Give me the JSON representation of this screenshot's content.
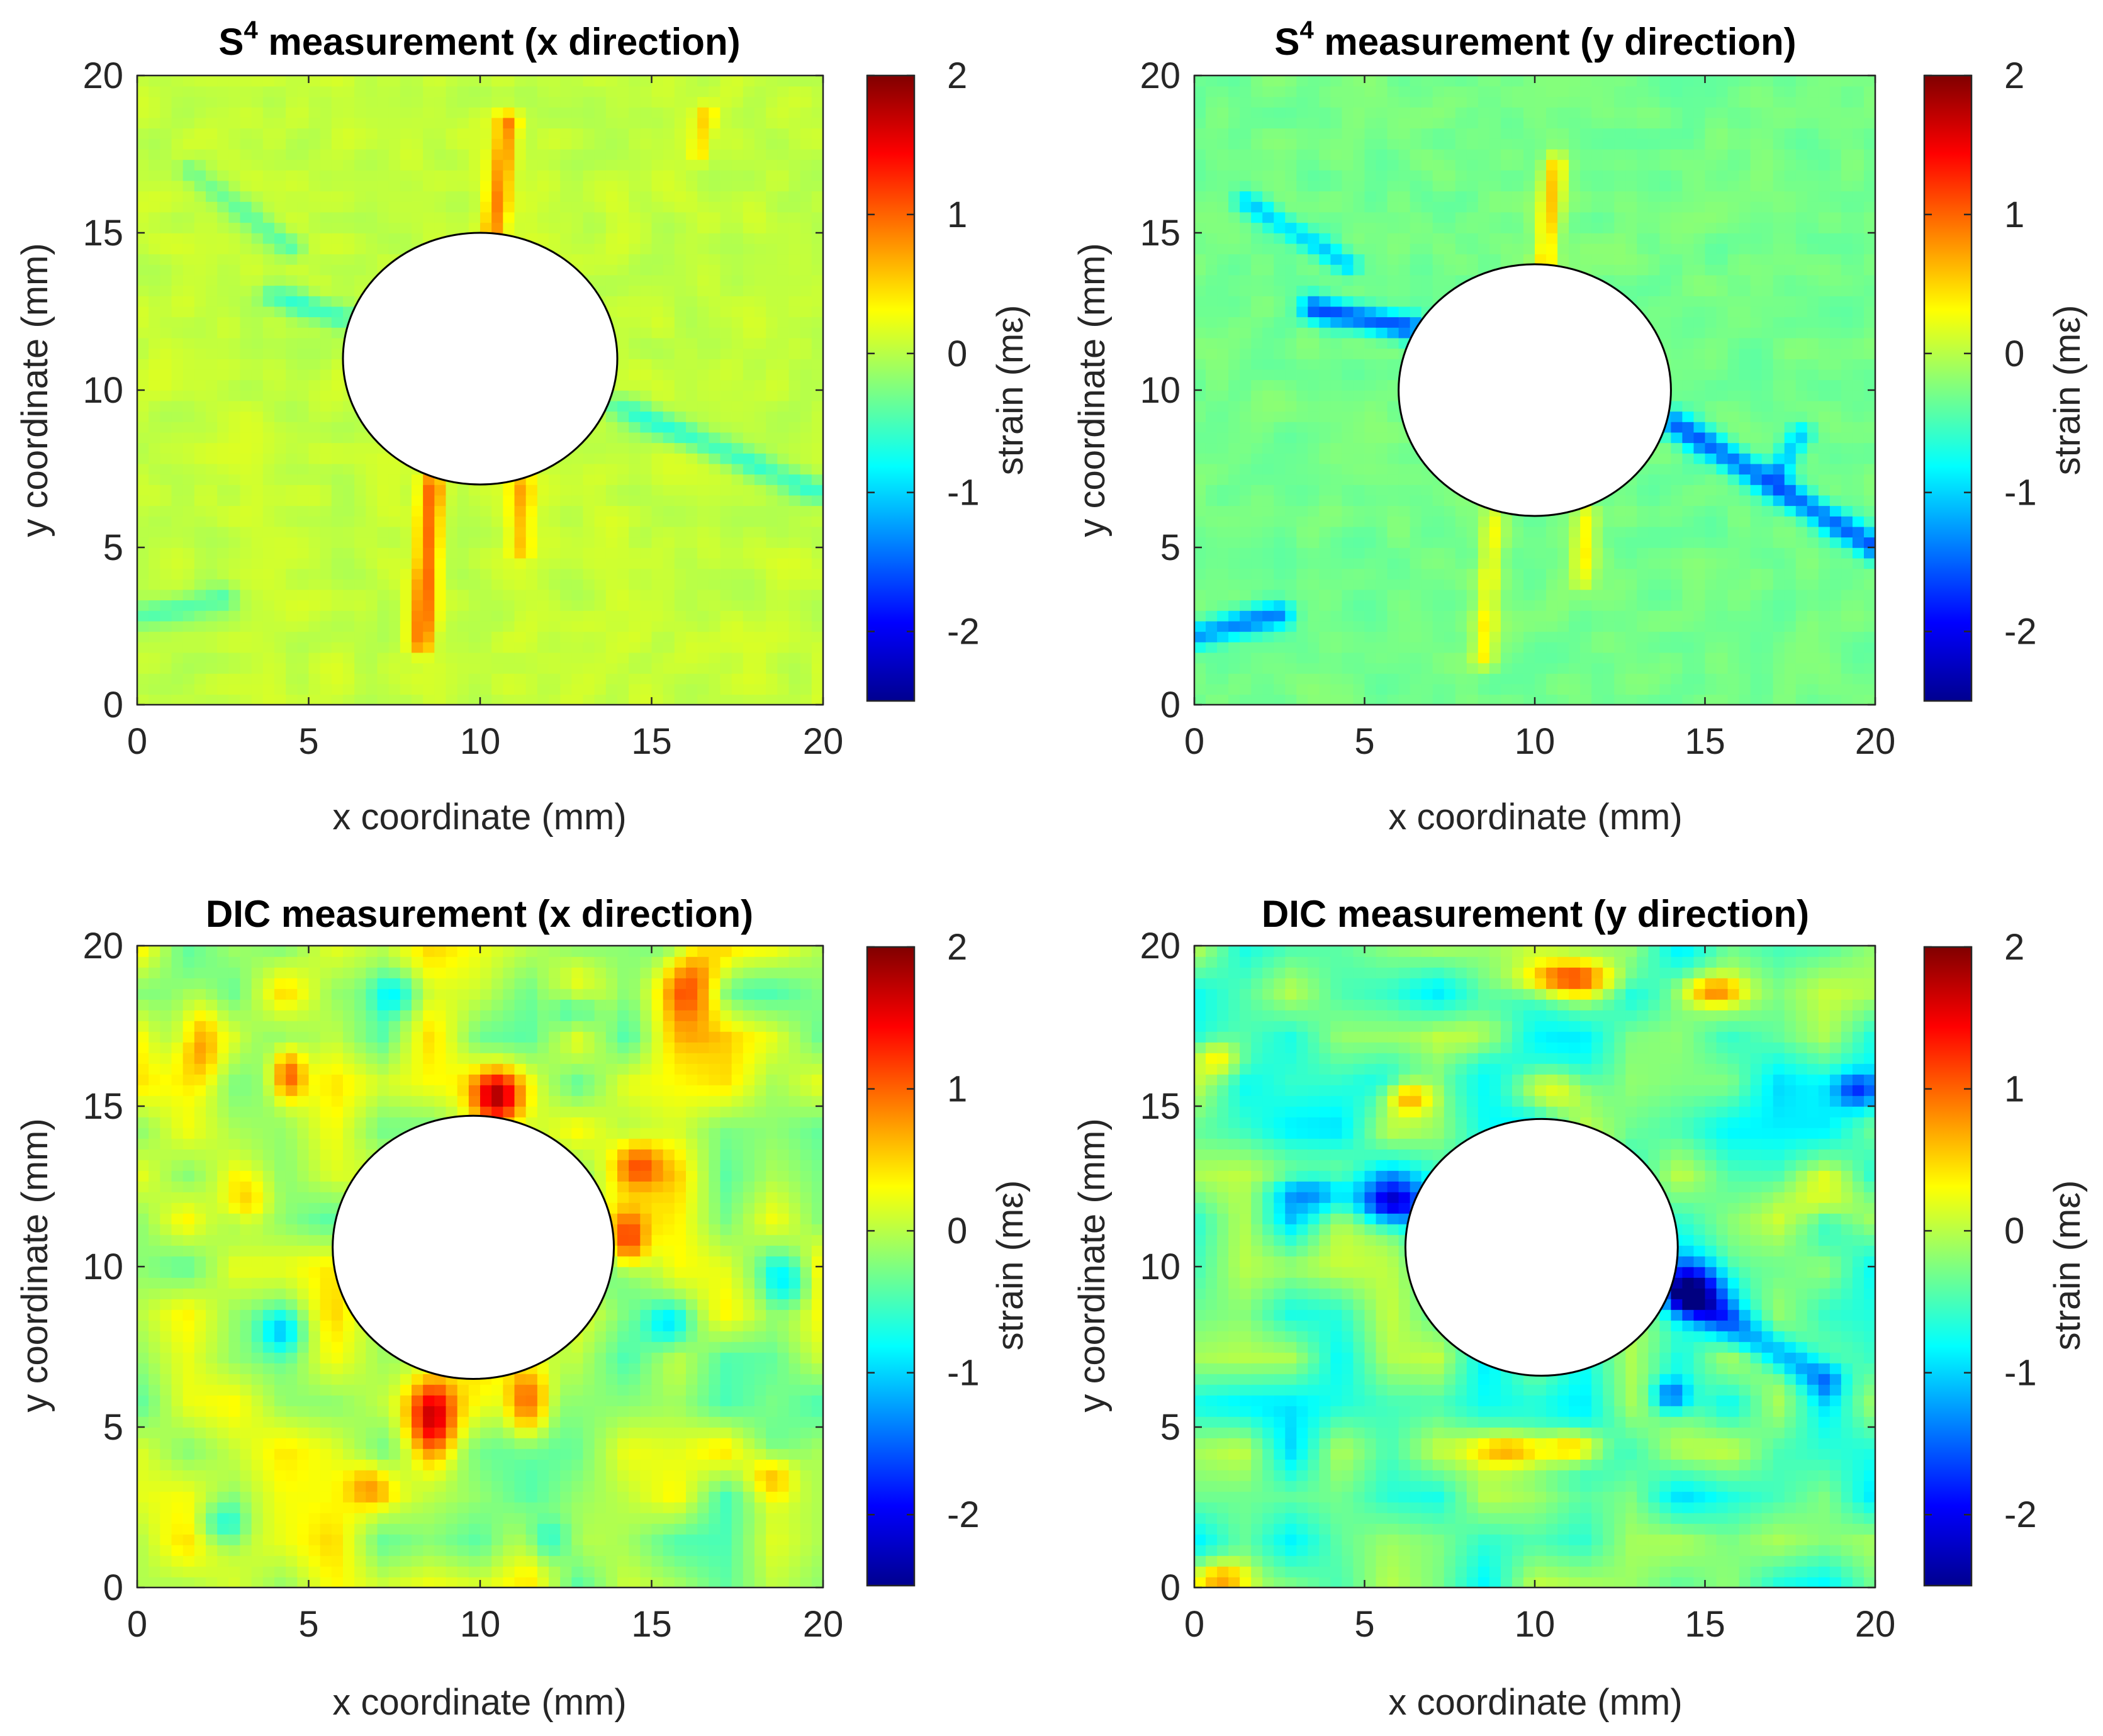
{
  "figure": {
    "description_free": true,
    "colormap": "jet",
    "hole_fill": "#ffffff",
    "hole_stroke": "#000000"
  },
  "chart_data": [
    {
      "type": "heatmap",
      "title_main": "S",
      "title_sup": "4",
      "title_rest": " measurement (x direction)",
      "xlabel": "x coordinate (mm)",
      "ylabel": "y coordinate (mm)",
      "xlim": [
        0,
        20
      ],
      "ylim": [
        0,
        20
      ],
      "xticks": [
        "0",
        "5",
        "10",
        "15",
        "20"
      ],
      "yticks": [
        "0",
        "5",
        "10",
        "15",
        "20"
      ],
      "colorbar_label": "strain (mε)",
      "clim": [
        -2.5,
        2
      ],
      "colorbar_ticks": [
        "-2",
        "-1",
        "0",
        "1",
        "2"
      ],
      "base_strain": 0.05,
      "hole": {
        "cx": 10,
        "cy": 11,
        "r": 4
      },
      "features": [
        {
          "kind": "streak",
          "x1": 8.3,
          "y1": 2.0,
          "x2": 8.6,
          "y2": 7.0,
          "w": 0.25,
          "v": 0.9
        },
        {
          "kind": "streak",
          "x1": 11.2,
          "y1": 5.0,
          "x2": 11.2,
          "y2": 7.0,
          "w": 0.25,
          "v": 0.6
        },
        {
          "kind": "streak",
          "x1": 10.4,
          "y1": 15.0,
          "x2": 10.8,
          "y2": 18.5,
          "w": 0.25,
          "v": 0.8
        },
        {
          "kind": "streak",
          "x1": 16.4,
          "y1": 17.5,
          "x2": 16.6,
          "y2": 18.8,
          "w": 0.2,
          "v": 0.4
        },
        {
          "kind": "streak",
          "x1": 4.0,
          "y1": 13.0,
          "x2": 6.0,
          "y2": 12.3,
          "w": 0.3,
          "v": -0.6
        },
        {
          "kind": "streak",
          "x1": 14.0,
          "y1": 9.5,
          "x2": 19.8,
          "y2": 6.8,
          "w": 0.3,
          "v": -0.6
        },
        {
          "kind": "streak",
          "x1": 0.0,
          "y1": 2.8,
          "x2": 2.5,
          "y2": 3.4,
          "w": 0.3,
          "v": -0.5
        },
        {
          "kind": "streak",
          "x1": 1.5,
          "y1": 17.0,
          "x2": 4.5,
          "y2": 14.5,
          "w": 0.25,
          "v": -0.4
        }
      ]
    },
    {
      "type": "heatmap",
      "title_main": "S",
      "title_sup": "4",
      "title_rest": " measurement (y direction)",
      "xlabel": "x coordinate (mm)",
      "ylabel": "y coordinate (mm)",
      "xlim": [
        0,
        20
      ],
      "ylim": [
        0,
        20
      ],
      "xticks": [
        "0",
        "5",
        "10",
        "15",
        "20"
      ],
      "yticks": [
        "0",
        "5",
        "10",
        "15",
        "20"
      ],
      "colorbar_label": "strain (mε)",
      "clim": [
        -2.5,
        2
      ],
      "colorbar_ticks": [
        "-2",
        "-1",
        "0",
        "1",
        "2"
      ],
      "base_strain": -0.3,
      "hole": {
        "cx": 10,
        "cy": 10,
        "r": 4
      },
      "features": [
        {
          "kind": "streak",
          "x1": 8.5,
          "y1": 1.5,
          "x2": 8.8,
          "y2": 6.0,
          "w": 0.25,
          "v": 0.6
        },
        {
          "kind": "streak",
          "x1": 11.4,
          "y1": 4.0,
          "x2": 11.5,
          "y2": 6.0,
          "w": 0.25,
          "v": 0.6
        },
        {
          "kind": "streak",
          "x1": 10.3,
          "y1": 14.0,
          "x2": 10.6,
          "y2": 17.2,
          "w": 0.25,
          "v": 0.8
        },
        {
          "kind": "streak",
          "x1": 3.5,
          "y1": 12.6,
          "x2": 6.3,
          "y2": 12.0,
          "w": 0.3,
          "v": -1.3
        },
        {
          "kind": "streak",
          "x1": 14.0,
          "y1": 9.0,
          "x2": 20.0,
          "y2": 5.0,
          "w": 0.3,
          "v": -1.2
        },
        {
          "kind": "streak",
          "x1": 0.0,
          "y1": 2.2,
          "x2": 2.5,
          "y2": 2.9,
          "w": 0.3,
          "v": -1.0
        },
        {
          "kind": "streak",
          "x1": 1.5,
          "y1": 16.0,
          "x2": 4.5,
          "y2": 14.0,
          "w": 0.25,
          "v": -0.7
        },
        {
          "kind": "streak",
          "x1": 17.2,
          "y1": 7.5,
          "x2": 17.8,
          "y2": 8.6,
          "w": 0.25,
          "v": -0.7
        }
      ]
    },
    {
      "type": "heatmap",
      "title_main": "DIC measurement (x direction)",
      "title_sup": "",
      "title_rest": "",
      "xlabel": "x coordinate (mm)",
      "ylabel": "y coordinate (mm)",
      "xlim": [
        0,
        20
      ],
      "ylim": [
        0,
        20
      ],
      "xticks": [
        "0",
        "5",
        "10",
        "15",
        "20"
      ],
      "yticks": [
        "0",
        "5",
        "10",
        "15",
        "20"
      ],
      "colorbar_label": "strain (mε)",
      "clim": [
        -2.5,
        2
      ],
      "colorbar_ticks": [
        "-2",
        "-1",
        "0",
        "1",
        "2"
      ],
      "base_strain": 0.0,
      "hole": {
        "cx": 9.8,
        "cy": 10.6,
        "r": 4.1
      },
      "features": [
        {
          "kind": "blob",
          "x": 8.6,
          "y": 5.3,
          "sx": 0.5,
          "sy": 0.9,
          "v": 1.5
        },
        {
          "kind": "blob",
          "x": 11.4,
          "y": 5.8,
          "sx": 0.45,
          "sy": 0.8,
          "v": 1.3
        },
        {
          "kind": "blob",
          "x": 10.5,
          "y": 15.3,
          "sx": 0.5,
          "sy": 0.6,
          "v": 1.6
        },
        {
          "kind": "blob",
          "x": 14.3,
          "y": 10.8,
          "sx": 0.4,
          "sy": 0.6,
          "v": 1.1
        },
        {
          "kind": "blob",
          "x": 14.6,
          "y": 13.2,
          "sx": 0.5,
          "sy": 0.5,
          "v": 0.8
        },
        {
          "kind": "blob",
          "x": 1.8,
          "y": 17.0,
          "sx": 0.5,
          "sy": 0.9,
          "v": 1.0
        },
        {
          "kind": "blob",
          "x": 4.4,
          "y": 16.0,
          "sx": 0.35,
          "sy": 0.6,
          "v": 1.1
        },
        {
          "kind": "blob",
          "x": 16.2,
          "y": 18.8,
          "sx": 0.6,
          "sy": 0.9,
          "v": 1.0
        },
        {
          "kind": "blob",
          "x": 18.5,
          "y": 3.5,
          "sx": 0.5,
          "sy": 0.5,
          "v": 0.7
        },
        {
          "kind": "blob",
          "x": 6.8,
          "y": 3.2,
          "sx": 0.5,
          "sy": 0.5,
          "v": 0.6
        },
        {
          "kind": "blob",
          "x": 3.2,
          "y": 12.0,
          "sx": 0.5,
          "sy": 0.6,
          "v": 0.6
        },
        {
          "kind": "blob",
          "x": 12.8,
          "y": 18.0,
          "sx": 0.5,
          "sy": 0.5,
          "v": -0.8
        },
        {
          "kind": "blob",
          "x": 4.2,
          "y": 8.0,
          "sx": 0.5,
          "sy": 0.5,
          "v": -0.8
        },
        {
          "kind": "blob",
          "x": 15.5,
          "y": 8.2,
          "sx": 0.5,
          "sy": 0.5,
          "v": -0.7
        },
        {
          "kind": "blob",
          "x": 19.0,
          "y": 9.5,
          "sx": 0.5,
          "sy": 0.6,
          "v": -0.7
        },
        {
          "kind": "blob",
          "x": 7.5,
          "y": 18.5,
          "sx": 0.5,
          "sy": 0.5,
          "v": -0.7
        },
        {
          "kind": "blob",
          "x": 2.5,
          "y": 2.0,
          "sx": 0.5,
          "sy": 0.5,
          "v": -0.7
        },
        {
          "kind": "blob",
          "x": 12.0,
          "y": 1.5,
          "sx": 0.5,
          "sy": 0.5,
          "v": -0.7
        }
      ]
    },
    {
      "type": "heatmap",
      "title_main": "DIC measurement (y direction)",
      "title_sup": "",
      "title_rest": "",
      "xlabel": "x coordinate (mm)",
      "ylabel": "y coordinate (mm)",
      "xlim": [
        0,
        20
      ],
      "ylim": [
        0,
        20
      ],
      "xticks": [
        "0",
        "5",
        "10",
        "15",
        "20"
      ],
      "yticks": [
        "0",
        "5",
        "10",
        "15",
        "20"
      ],
      "colorbar_label": "strain (mε)",
      "clim": [
        -2.5,
        2
      ],
      "colorbar_ticks": [
        "-2",
        "-1",
        "0",
        "1",
        "2"
      ],
      "base_strain": -0.45,
      "hole": {
        "cx": 10.2,
        "cy": 10.6,
        "r": 4
      },
      "features": [
        {
          "kind": "blob",
          "x": 5.8,
          "y": 12.0,
          "sx": 0.7,
          "sy": 0.5,
          "v": -1.6
        },
        {
          "kind": "blob",
          "x": 3.5,
          "y": 12.3,
          "sx": 0.9,
          "sy": 0.45,
          "v": -1.0
        },
        {
          "kind": "blob",
          "x": 14.6,
          "y": 9.3,
          "sx": 0.7,
          "sy": 0.6,
          "v": -1.6
        },
        {
          "kind": "streak",
          "x1": 14.5,
          "y1": 9.0,
          "x2": 18.5,
          "y2": 6.5,
          "w": 0.4,
          "v": -0.9
        },
        {
          "kind": "blob",
          "x": 14.0,
          "y": 6.0,
          "sx": 0.4,
          "sy": 0.4,
          "v": -1.1
        },
        {
          "kind": "blob",
          "x": 19.5,
          "y": 15.5,
          "sx": 0.5,
          "sy": 0.4,
          "v": -1.0
        },
        {
          "kind": "blob",
          "x": 11.0,
          "y": 19.0,
          "sx": 1.0,
          "sy": 0.4,
          "v": 1.3
        },
        {
          "kind": "blob",
          "x": 15.2,
          "y": 18.6,
          "sx": 0.6,
          "sy": 0.35,
          "v": 0.9
        },
        {
          "kind": "blob",
          "x": 9.3,
          "y": 4.3,
          "sx": 0.9,
          "sy": 0.4,
          "v": 1.0
        },
        {
          "kind": "blob",
          "x": 11.2,
          "y": 4.4,
          "sx": 0.6,
          "sy": 0.4,
          "v": 1.1
        },
        {
          "kind": "blob",
          "x": 6.3,
          "y": 15.3,
          "sx": 0.5,
          "sy": 0.4,
          "v": 1.1
        },
        {
          "kind": "blob",
          "x": 10.5,
          "y": 15.5,
          "sx": 0.8,
          "sy": 0.5,
          "v": 0.8
        },
        {
          "kind": "blob",
          "x": 0.7,
          "y": 16.5,
          "sx": 0.5,
          "sy": 0.4,
          "v": 0.8
        },
        {
          "kind": "blob",
          "x": 18.5,
          "y": 12.0,
          "sx": 0.8,
          "sy": 0.6,
          "v": 0.6
        },
        {
          "kind": "blob",
          "x": 0.8,
          "y": 0.3,
          "sx": 0.6,
          "sy": 0.4,
          "v": 0.9
        },
        {
          "kind": "blob",
          "x": 8.5,
          "y": 17.2,
          "sx": 0.8,
          "sy": 0.5,
          "v": 0.6
        }
      ]
    }
  ]
}
